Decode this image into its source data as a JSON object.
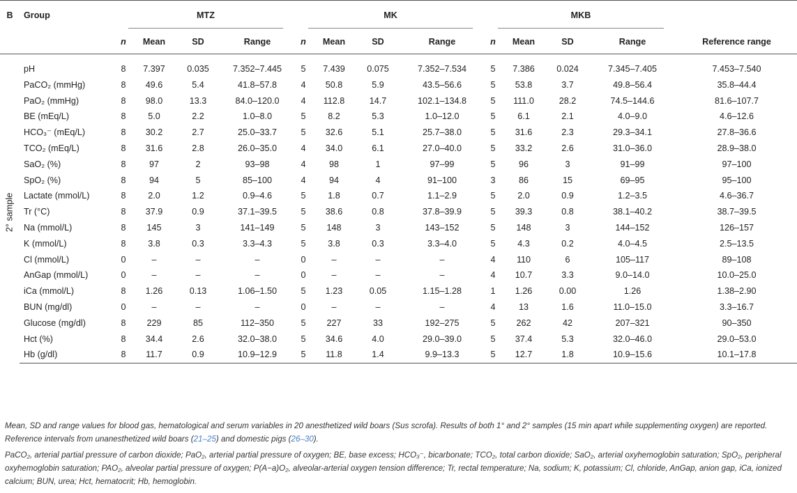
{
  "table": {
    "panel_label": "B",
    "group_header": "Group",
    "groups": [
      "MTZ",
      "MK",
      "MKB"
    ],
    "sub_headers": [
      "n",
      "Mean",
      "SD",
      "Range"
    ],
    "reference_header": "Reference range",
    "section_label": "2° sample",
    "rows": [
      {
        "var": "pH",
        "vals": [
          "8",
          "7.397",
          "0.035",
          "7.352–7.445",
          "5",
          "7.439",
          "0.075",
          "7.352–7.534",
          "5",
          "7.386",
          "0.024",
          "7.345–7.405",
          "7.453–7.540"
        ]
      },
      {
        "var": "PaCO₂ (mmHg)",
        "vals": [
          "8",
          "49.6",
          "5.4",
          "41.8–57.8",
          "4",
          "50.8",
          "5.9",
          "43.5–56.6",
          "5",
          "53.8",
          "3.7",
          "49.8–56.4",
          "35.8–44.4"
        ]
      },
      {
        "var": "PaO₂ (mmHg)",
        "vals": [
          "8",
          "98.0",
          "13.3",
          "84.0–120.0",
          "4",
          "112.8",
          "14.7",
          "102.1–134.8",
          "5",
          "111.0",
          "28.2",
          "74.5–144.6",
          "81.6–107.7"
        ]
      },
      {
        "var": "BE (mEq/L)",
        "vals": [
          "8",
          "5.0",
          "2.2",
          "1.0–8.0",
          "5",
          "8.2",
          "5.3",
          "1.0–12.0",
          "5",
          "6.1",
          "2.1",
          "4.0–9.0",
          "4.6–12.6"
        ]
      },
      {
        "var": "HCO₃⁻ (mEq/L)",
        "vals": [
          "8",
          "30.2",
          "2.7",
          "25.0–33.7",
          "5",
          "32.6",
          "5.1",
          "25.7–38.0",
          "5",
          "31.6",
          "2.3",
          "29.3–34.1",
          "27.8–36.6"
        ]
      },
      {
        "var": "TCO₂ (mEq/L)",
        "vals": [
          "8",
          "31.6",
          "2.8",
          "26.0–35.0",
          "4",
          "34.0",
          "6.1",
          "27.0–40.0",
          "5",
          "33.2",
          "2.6",
          "31.0–36.0",
          "28.9–38.0"
        ]
      },
      {
        "var": "SaO₂ (%)",
        "vals": [
          "8",
          "97",
          "2",
          "93–98",
          "4",
          "98",
          "1",
          "97–99",
          "5",
          "96",
          "3",
          "91–99",
          "97–100"
        ]
      },
      {
        "var": "SpO₂ (%)",
        "vals": [
          "8",
          "94",
          "5",
          "85–100",
          "4",
          "94",
          "4",
          "91–100",
          "3",
          "86",
          "15",
          "69–95",
          "95–100"
        ]
      },
      {
        "var": "Lactate (mmol/L)",
        "vals": [
          "8",
          "2.0",
          "1.2",
          "0.9–4.6",
          "5",
          "1.8",
          "0.7",
          "1.1–2.9",
          "5",
          "2.0",
          "0.9",
          "1.2–3.5",
          "4.6–36.7"
        ]
      },
      {
        "var": "Tr (°C)",
        "vals": [
          "8",
          "37.9",
          "0.9",
          "37.1–39.5",
          "5",
          "38.6",
          "0.8",
          "37.8–39.9",
          "5",
          "39.3",
          "0.8",
          "38.1–40.2",
          "38.7–39.5"
        ]
      },
      {
        "var": "Na (mmol/L)",
        "vals": [
          "8",
          "145",
          "3",
          "141–149",
          "5",
          "148",
          "3",
          "143–152",
          "5",
          "148",
          "3",
          "144–152",
          "126–157"
        ]
      },
      {
        "var": "K (mmol/L)",
        "vals": [
          "8",
          "3.8",
          "0.3",
          "3.3–4.3",
          "5",
          "3.8",
          "0.3",
          "3.3–4.0",
          "5",
          "4.3",
          "0.2",
          "4.0–4.5",
          "2.5–13.5"
        ]
      },
      {
        "var": "Cl (mmol/L)",
        "vals": [
          "0",
          "–",
          "–",
          "–",
          "0",
          "–",
          "–",
          "–",
          "4",
          "110",
          "6",
          "105–117",
          "89–108"
        ]
      },
      {
        "var": "AnGap (mmol/L)",
        "vals": [
          "0",
          "–",
          "–",
          "–",
          "0",
          "–",
          "–",
          "–",
          "4",
          "10.7",
          "3.3",
          "9.0–14.0",
          "10.0–25.0"
        ]
      },
      {
        "var": "iCa (mmol/L)",
        "vals": [
          "8",
          "1.26",
          "0.13",
          "1.06–1.50",
          "5",
          "1.23",
          "0.05",
          "1.15–1.28",
          "1",
          "1.26",
          "0.00",
          "1.26",
          "1.38–2.90"
        ]
      },
      {
        "var": "BUN (mg/dl)",
        "vals": [
          "0",
          "–",
          "–",
          "–",
          "0",
          "–",
          "–",
          "–",
          "4",
          "13",
          "1.6",
          "11.0–15.0",
          "3.3–16.7"
        ]
      },
      {
        "var": "Glucose (mg/dl)",
        "vals": [
          "8",
          "229",
          "85",
          "112–350",
          "5",
          "227",
          "33",
          "192–275",
          "5",
          "262",
          "42",
          "207–321",
          "90–350"
        ]
      },
      {
        "var": "Hct (%)",
        "vals": [
          "8",
          "34.4",
          "2.6",
          "32.0–38.0",
          "5",
          "34.6",
          "4.0",
          "29.0–39.0",
          "5",
          "37.4",
          "5.3",
          "32.0–46.0",
          "29.0–53.0"
        ]
      },
      {
        "var": "Hb (g/dl)",
        "vals": [
          "8",
          "11.7",
          "0.9",
          "10.9–12.9",
          "5",
          "11.8",
          "1.4",
          "9.9–13.3",
          "5",
          "12.7",
          "1.8",
          "10.9–15.6",
          "10.1–17.8"
        ]
      }
    ]
  },
  "footnote": {
    "p1_text": "Mean, SD and range values for blood gas, hematological and serum variables in 20 anesthetized wild boars (Sus scrofa). Results of both 1° and 2° samples (15 min apart while supplementing oxygen) are reported. Reference intervals from unanesthetized wild boars (",
    "p1_ref1": "21–25",
    "p1_mid": ") and domestic pigs (",
    "p1_ref2": "26–30",
    "p1_end": ").",
    "p2_text": "PaCO₂, arterial partial pressure of carbon dioxide; PaO₂, arterial partial pressure of oxygen; BE, base excess; HCO₃⁻, bicarbonate; TCO₂, total carbon dioxide; SaO₂, arterial oxyhemoglobin saturation; SpO₂, peripheral oxyhemoglobin saturation; PAO₂, alveolar partial pressure of oxygen; P(A−a)O₂, alveolar-arterial oxygen tension difference; Tr, rectal temperature; Na, sodium; K, potassium; Cl, chloride, AnGap, anion gap, iCa, ionized calcium; BUN, urea; Hct, hematocrit; Hb, hemoglobin."
  }
}
